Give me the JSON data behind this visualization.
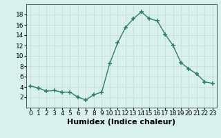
{
  "x": [
    0,
    1,
    2,
    3,
    4,
    5,
    6,
    7,
    8,
    9,
    10,
    11,
    12,
    13,
    14,
    15,
    16,
    17,
    18,
    19,
    20,
    21,
    22,
    23
  ],
  "y": [
    4.2,
    3.8,
    3.2,
    3.3,
    3.0,
    3.0,
    2.0,
    1.5,
    2.5,
    3.0,
    8.5,
    12.5,
    15.5,
    17.2,
    18.5,
    17.2,
    16.8,
    14.2,
    12.0,
    8.7,
    7.5,
    6.5,
    5.0,
    4.7
  ],
  "xlabel": "Humidex (Indice chaleur)",
  "line_color": "#2e7d6e",
  "marker_color": "#2e7d6e",
  "bg_color": "#d8f0ee",
  "grid_color": "#c8dedd",
  "ylim": [
    0,
    20
  ],
  "xlim": [
    -0.5,
    23.5
  ],
  "yticks": [
    2,
    4,
    6,
    8,
    10,
    12,
    14,
    16,
    18
  ],
  "xtick_labels": [
    "0",
    "1",
    "2",
    "3",
    "4",
    "5",
    "6",
    "7",
    "8",
    "9",
    "10",
    "11",
    "12",
    "13",
    "14",
    "15",
    "16",
    "17",
    "18",
    "19",
    "20",
    "21",
    "22",
    "23"
  ],
  "tick_fontsize": 6.5,
  "xlabel_fontsize": 8
}
